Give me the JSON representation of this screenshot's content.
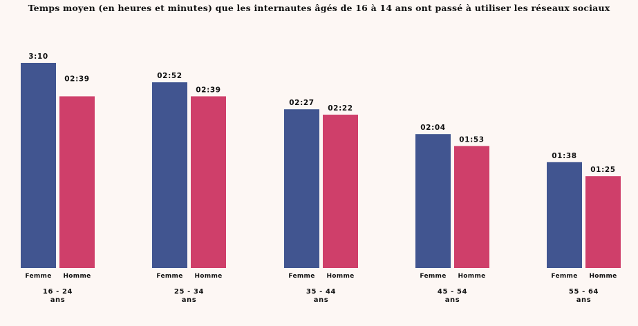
{
  "chart_data": {
    "type": "bar",
    "title": "Temps moyen (en heures et minutes) que les internautes âgés de 16 à 14 ans ont passé à utiliser les réseaux sociaux",
    "groups": [
      {
        "age_line1": "16 - 24",
        "age_line2": "ans"
      },
      {
        "age_line1": "25 - 34",
        "age_line2": "ans"
      },
      {
        "age_line1": "35 - 44",
        "age_line2": "ans"
      },
      {
        "age_line1": "45 - 54",
        "age_line2": "ans"
      },
      {
        "age_line1": "55 - 64",
        "age_line2": "ans"
      }
    ],
    "series": [
      {
        "label": "Femme",
        "color": "#415590",
        "labels": [
          "3:10",
          "02:52",
          "02:27",
          "02:04",
          "01:38"
        ],
        "minutes": [
          190,
          172,
          147,
          124,
          98
        ]
      },
      {
        "label": "Homme",
        "color": "#cf3f6a",
        "labels": [
          "02:39",
          "02:39",
          "02:22",
          "01:53",
          "01:25"
        ],
        "minutes": [
          159,
          159,
          142,
          113,
          85
        ]
      }
    ],
    "legend": "none",
    "grid": false
  }
}
